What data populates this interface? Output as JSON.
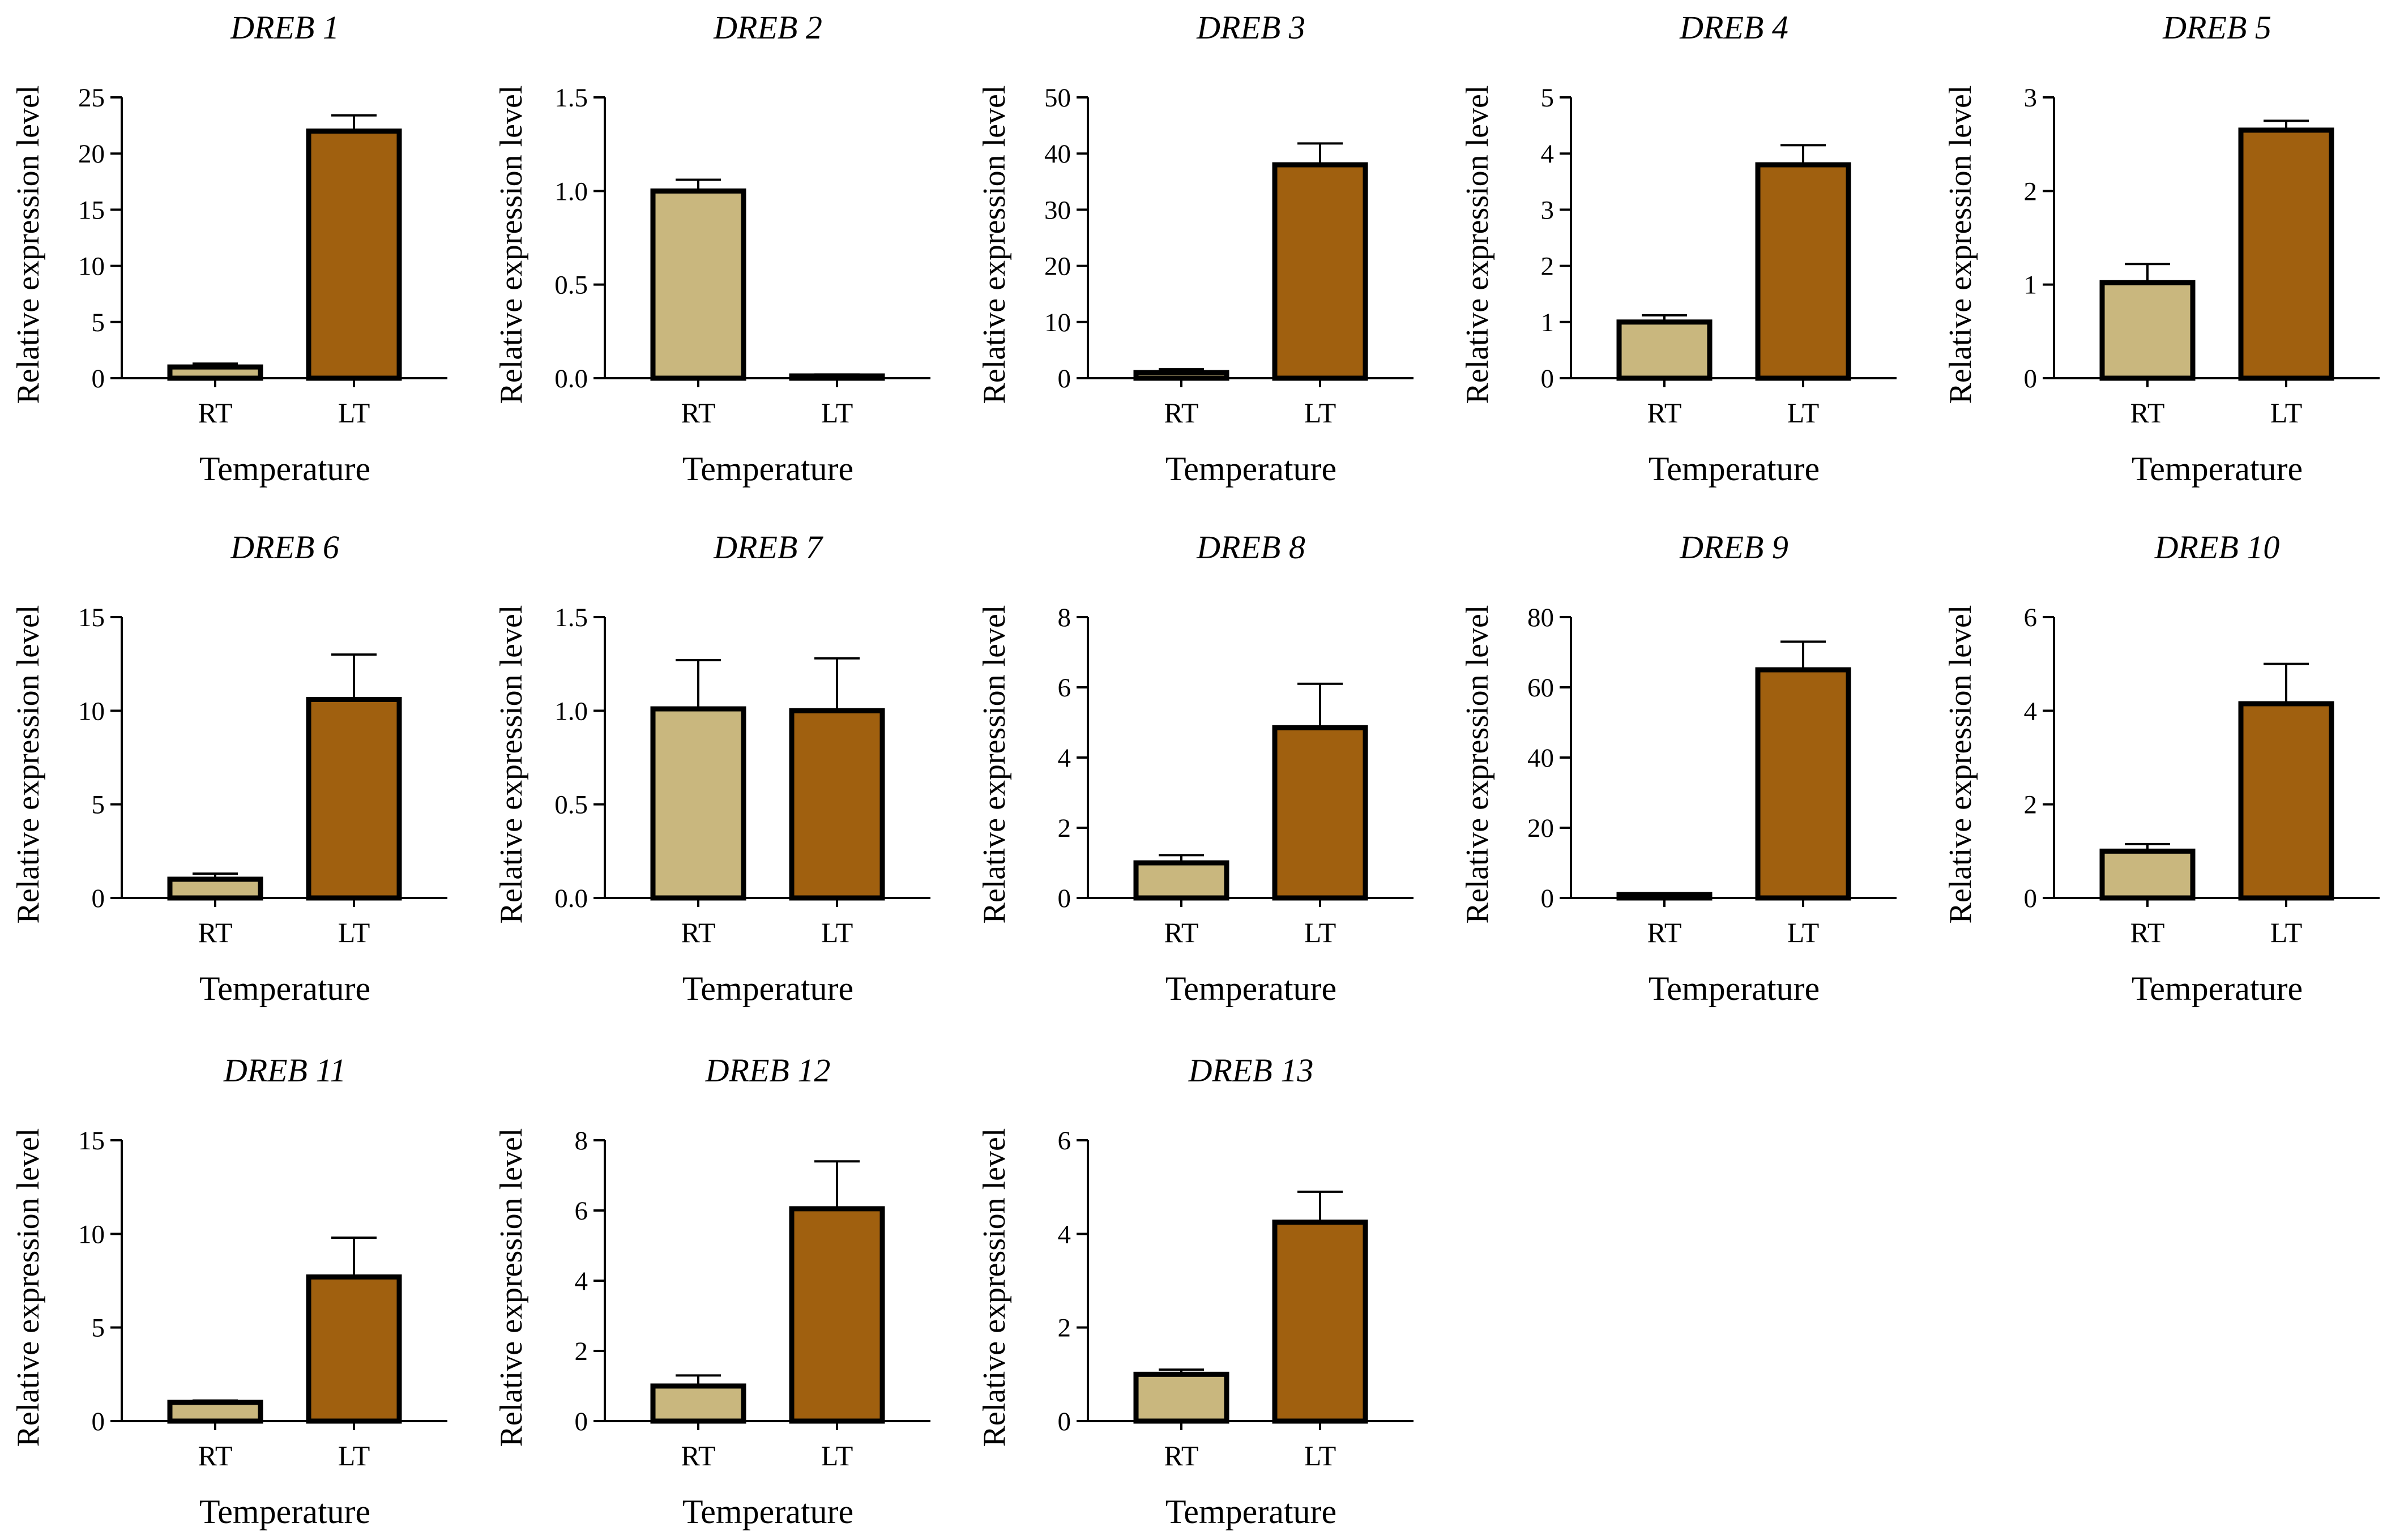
{
  "colors": {
    "RT": "#c9b77e",
    "LT": "#a0600f",
    "stroke": "#000000"
  },
  "chart_data": [
    {
      "type": "bar",
      "title": "DREB 1",
      "xlabel": "Temperature",
      "ylabel": "Relative expression level",
      "categories": [
        "RT",
        "LT"
      ],
      "values": [
        1.0,
        22.0
      ],
      "errors": [
        0.3,
        1.4
      ],
      "ylim": [
        0,
        25
      ],
      "yticks": [
        "0",
        "5",
        "10",
        "15",
        "20",
        "25"
      ]
    },
    {
      "type": "bar",
      "title": "DREB 2",
      "xlabel": "Temperature",
      "ylabel": "Relative expression level",
      "categories": [
        "RT",
        "LT"
      ],
      "values": [
        1.0,
        0.01
      ],
      "errors": [
        0.06,
        0.01
      ],
      "ylim": [
        0,
        1.5
      ],
      "yticks": [
        "0.0",
        "0.5",
        "1.0",
        "1.5"
      ]
    },
    {
      "type": "bar",
      "title": "DREB 3",
      "xlabel": "Temperature",
      "ylabel": "Relative expression level",
      "categories": [
        "RT",
        "LT"
      ],
      "values": [
        1.0,
        38.0
      ],
      "errors": [
        0.6,
        3.8
      ],
      "ylim": [
        0,
        50
      ],
      "yticks": [
        "0",
        "10",
        "20",
        "30",
        "40",
        "50"
      ]
    },
    {
      "type": "bar",
      "title": "DREB 4",
      "xlabel": "Temperature",
      "ylabel": "Relative expression level",
      "categories": [
        "RT",
        "LT"
      ],
      "values": [
        1.0,
        3.8
      ],
      "errors": [
        0.12,
        0.35
      ],
      "ylim": [
        0,
        5
      ],
      "yticks": [
        "0",
        "1",
        "2",
        "3",
        "4",
        "5"
      ]
    },
    {
      "type": "bar",
      "title": "DREB 5",
      "xlabel": "Temperature",
      "ylabel": "Relative expression level",
      "categories": [
        "RT",
        "LT"
      ],
      "values": [
        1.02,
        2.65
      ],
      "errors": [
        0.2,
        0.1
      ],
      "ylim": [
        0,
        3
      ],
      "yticks": [
        "0",
        "1",
        "2",
        "3"
      ]
    },
    {
      "type": "bar",
      "title": "DREB 6",
      "xlabel": "Temperature",
      "ylabel": "Relative expression level",
      "categories": [
        "RT",
        "LT"
      ],
      "values": [
        1.0,
        10.6
      ],
      "errors": [
        0.3,
        2.4
      ],
      "ylim": [
        0,
        15
      ],
      "yticks": [
        "0",
        "5",
        "10",
        "15"
      ]
    },
    {
      "type": "bar",
      "title": "DREB 7",
      "xlabel": "Temperature",
      "ylabel": "Relative expression level",
      "categories": [
        "RT",
        "LT"
      ],
      "values": [
        1.01,
        1.0
      ],
      "errors": [
        0.26,
        0.28
      ],
      "ylim": [
        0,
        1.5
      ],
      "yticks": [
        "0.0",
        "0.5",
        "1.0",
        "1.5"
      ]
    },
    {
      "type": "bar",
      "title": "DREB 8",
      "xlabel": "Temperature",
      "ylabel": "Relative expression level",
      "categories": [
        "RT",
        "LT"
      ],
      "values": [
        1.0,
        4.85
      ],
      "errors": [
        0.22,
        1.25
      ],
      "ylim": [
        0,
        8
      ],
      "yticks": [
        "0",
        "2",
        "4",
        "6",
        "8"
      ]
    },
    {
      "type": "bar",
      "title": "DREB 9",
      "xlabel": "Temperature",
      "ylabel": "Relative expression level",
      "categories": [
        "RT",
        "LT"
      ],
      "values": [
        1.0,
        65.0
      ],
      "errors": [
        0.3,
        8.0
      ],
      "ylim": [
        0,
        80
      ],
      "yticks": [
        "0",
        "20",
        "40",
        "60",
        "80"
      ]
    },
    {
      "type": "bar",
      "title": "DREB 10",
      "xlabel": "Temperature",
      "ylabel": "Relative expression level",
      "categories": [
        "RT",
        "LT"
      ],
      "values": [
        1.0,
        4.15
      ],
      "errors": [
        0.15,
        0.85
      ],
      "ylim": [
        0,
        6
      ],
      "yticks": [
        "0",
        "2",
        "4",
        "6"
      ]
    },
    {
      "type": "bar",
      "title": "DREB 11",
      "xlabel": "Temperature",
      "ylabel": "Relative expression level",
      "categories": [
        "RT",
        "LT"
      ],
      "values": [
        1.0,
        7.7
      ],
      "errors": [
        0.1,
        2.1
      ],
      "ylim": [
        0,
        15
      ],
      "yticks": [
        "0",
        "5",
        "10",
        "15"
      ]
    },
    {
      "type": "bar",
      "title": "DREB 12",
      "xlabel": "Temperature",
      "ylabel": "Relative expression level",
      "categories": [
        "RT",
        "LT"
      ],
      "values": [
        1.0,
        6.05
      ],
      "errors": [
        0.3,
        1.35
      ],
      "ylim": [
        0,
        8
      ],
      "yticks": [
        "0",
        "2",
        "4",
        "6",
        "8"
      ]
    },
    {
      "type": "bar",
      "title": "DREB 13",
      "xlabel": "Temperature",
      "ylabel": "Relative expression level",
      "categories": [
        "RT",
        "LT"
      ],
      "values": [
        1.0,
        4.25
      ],
      "errors": [
        0.1,
        0.65
      ],
      "ylim": [
        0,
        6
      ],
      "yticks": [
        "0",
        "2",
        "4",
        "6"
      ]
    }
  ]
}
